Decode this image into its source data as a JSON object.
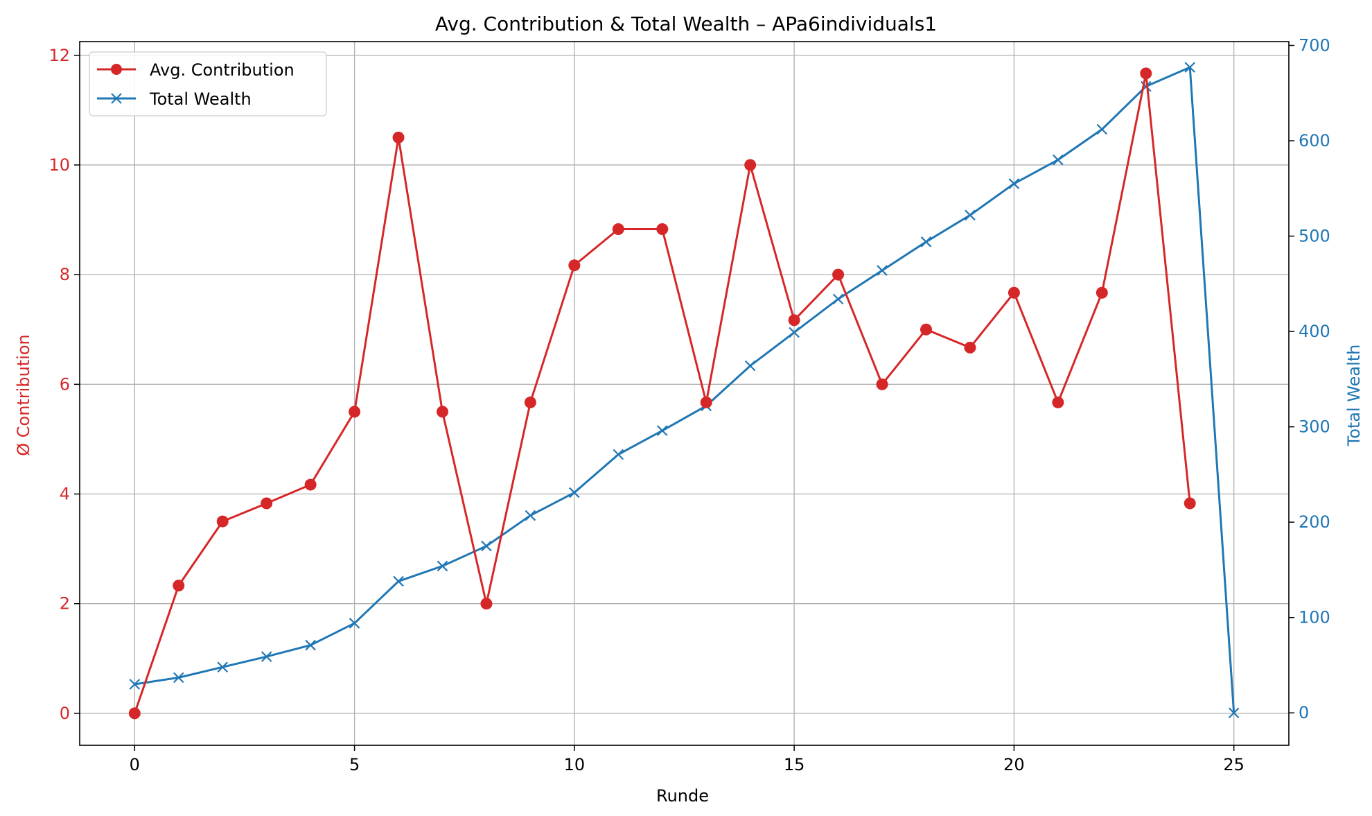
{
  "chart_data": {
    "type": "line",
    "title": "Avg. Contribution & Total Wealth – APa6individuals1",
    "xlabel": "Runde",
    "ylabel_left": "Ø Contribution",
    "ylabel_right": "Total Wealth",
    "xlim": [
      -1.25,
      26.25
    ],
    "ylim_left": [
      -0.583,
      12.25
    ],
    "ylim_right": [
      -34,
      704
    ],
    "x_ticks": [
      0,
      5,
      10,
      15,
      20,
      25
    ],
    "y_ticks_left": [
      0,
      2,
      4,
      6,
      8,
      10,
      12
    ],
    "y_ticks_right": [
      0,
      100,
      200,
      300,
      400,
      500,
      600,
      700
    ],
    "grid": true,
    "legend_position": "top-left",
    "colors": {
      "contribution": "#d62728",
      "wealth": "#1f77b4",
      "grid": "#b0b0b0",
      "axis": "#000000"
    },
    "series": [
      {
        "name": "Avg. Contribution",
        "axis": "left",
        "marker": "circle",
        "x": [
          0,
          1,
          2,
          3,
          4,
          5,
          6,
          7,
          8,
          9,
          10,
          11,
          12,
          13,
          14,
          15,
          16,
          17,
          18,
          19,
          20,
          21,
          22,
          23,
          24
        ],
        "values": [
          0,
          2.33,
          3.5,
          3.83,
          4.17,
          5.5,
          10.5,
          5.5,
          2.0,
          5.67,
          8.17,
          8.83,
          8.83,
          5.67,
          10.0,
          7.17,
          8.0,
          6.0,
          7.0,
          6.67,
          7.67,
          5.67,
          7.67,
          11.67,
          3.83
        ]
      },
      {
        "name": "Total Wealth",
        "axis": "right",
        "marker": "x",
        "x": [
          0,
          1,
          2,
          3,
          4,
          5,
          6,
          7,
          8,
          9,
          10,
          11,
          12,
          13,
          14,
          15,
          16,
          17,
          18,
          19,
          20,
          21,
          22,
          23,
          24,
          25
        ],
        "values": [
          30,
          37,
          48,
          59,
          71,
          94,
          138,
          154,
          175,
          207,
          231,
          271,
          296,
          322,
          364,
          399,
          434,
          464,
          494,
          522,
          555,
          580,
          612,
          657,
          677,
          0
        ]
      }
    ]
  }
}
